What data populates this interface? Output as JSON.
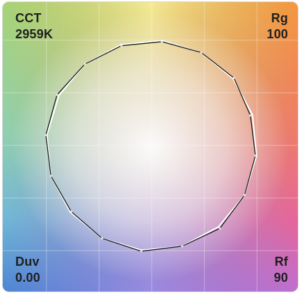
{
  "metrics": {
    "cct": {
      "label": "CCT",
      "value": "2959K"
    },
    "rg": {
      "label": "Rg",
      "value": "100"
    },
    "duv": {
      "label": "Duv",
      "value": "0.00"
    },
    "rf": {
      "label": "Rf",
      "value": "90"
    }
  },
  "chart_data": {
    "type": "line",
    "title": "",
    "grid": true,
    "note_bins": 16,
    "series": [
      {
        "style": "reference",
        "color": "#ffffff",
        "r": [
          1,
          1,
          1,
          1,
          1,
          1,
          1,
          1,
          1,
          1,
          1,
          1,
          1,
          1,
          1,
          1
        ]
      },
      {
        "style": "test",
        "color": "#1a1a1a",
        "r": [
          0.99,
          1.0,
          1.01,
          0.98,
          0.99,
          1.0,
          1.02,
          1.0,
          1.01,
          1.0,
          0.99,
          1.0,
          1.01,
          1.02,
          1.0,
          0.99
        ]
      }
    ]
  },
  "colors": {
    "top_left": "#a4d37a",
    "top_right": "#f29a4e",
    "bottom_left": "#4d8fd8",
    "bottom_right": "#e85ea0",
    "center": "#ffffff"
  }
}
